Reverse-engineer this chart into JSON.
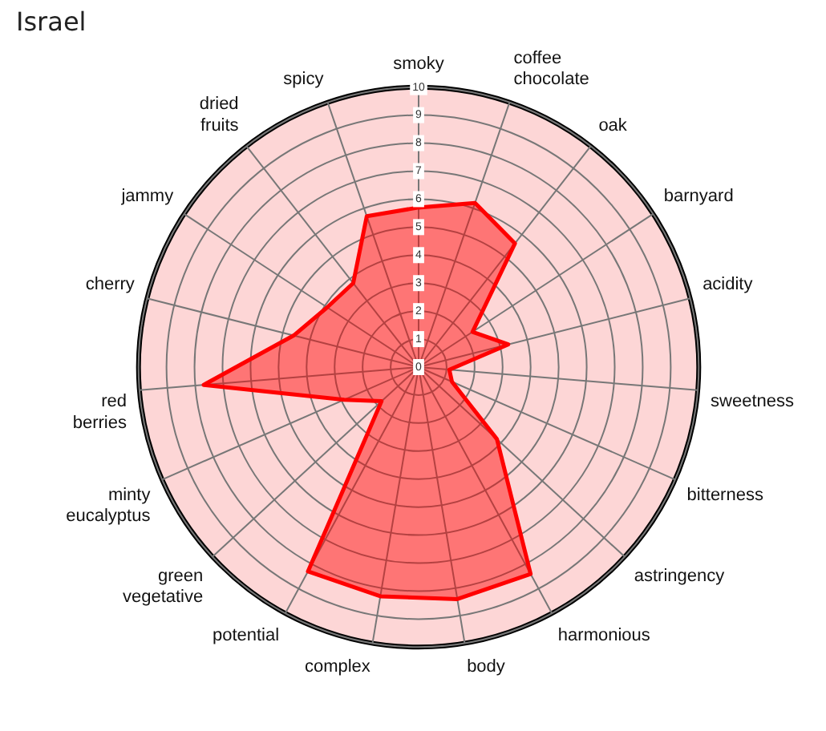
{
  "chart_data": {
    "type": "radar",
    "title": "Israel",
    "categories": [
      "smoky",
      "coffee chocolate",
      "oak",
      "barnyard",
      "acidity",
      "sweetness",
      "bitterness",
      "astringency",
      "harmonious",
      "body",
      "complex",
      "potential",
      "green vegetative",
      "minty eucalyptus",
      "red berries",
      "cherry",
      "jammy",
      "dried fruits",
      "spicy"
    ],
    "series": [
      {
        "color": "#ff0000",
        "values": [
          5.7,
          6.2,
          5.6,
          2.3,
          3.3,
          1.1,
          1.3,
          3.8,
          8.4,
          8.4,
          8.3,
          8.3,
          1.8,
          2.9,
          7.7,
          4.6,
          3.9,
          3.8,
          5.7
        ]
      }
    ],
    "ylim": [
      0,
      10
    ],
    "yticks": [
      0,
      1,
      2,
      3,
      4,
      5,
      6,
      7,
      8,
      9,
      10
    ],
    "grid": true,
    "legend": false,
    "marker": "none"
  }
}
